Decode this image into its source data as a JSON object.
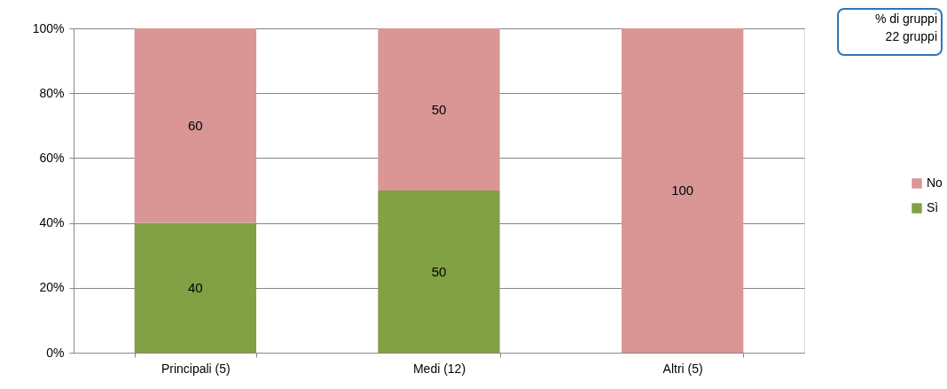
{
  "chart_data": {
    "type": "bar",
    "stacked": true,
    "categories": [
      "Principali (5)",
      "Medi (12)",
      "Altri (5)"
    ],
    "series": [
      {
        "name": "Sì",
        "color": "#82a044",
        "values": [
          40,
          50,
          0
        ],
        "value_labels": [
          "40",
          "50",
          null
        ]
      },
      {
        "name": "No",
        "color": "#d99694",
        "values": [
          60,
          50,
          100
        ],
        "value_labels": [
          "60",
          "50",
          "100"
        ]
      }
    ],
    "ylim": [
      0,
      100
    ],
    "yticks": [
      {
        "value": 0,
        "label": "0%"
      },
      {
        "value": 20,
        "label": "20%"
      },
      {
        "value": 40,
        "label": "40%"
      },
      {
        "value": 60,
        "label": "60%"
      },
      {
        "value": 80,
        "label": "80%"
      },
      {
        "value": 100,
        "label": "100%"
      }
    ],
    "grid": "y",
    "legend": "right",
    "annotations": [
      "% di gruppi",
      "22 gruppi"
    ]
  }
}
